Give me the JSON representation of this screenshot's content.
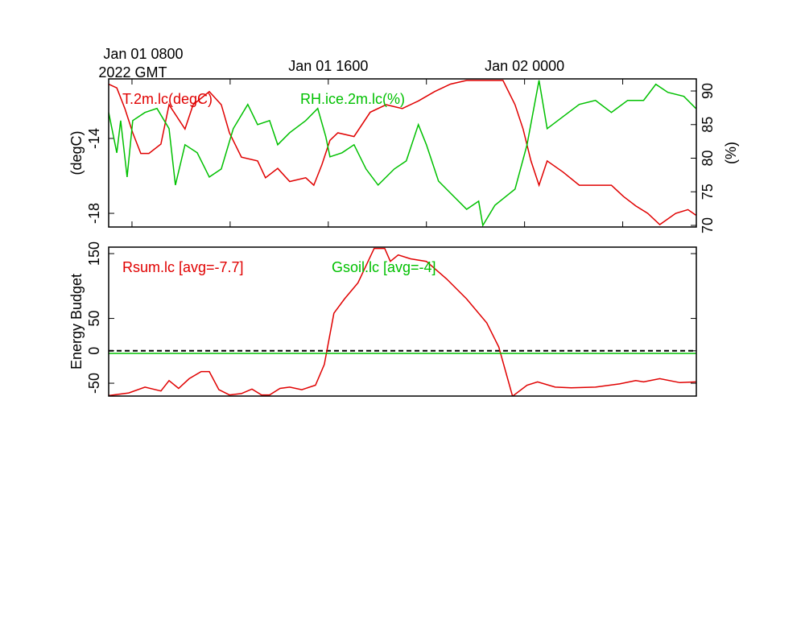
{
  "chart_data": [
    {
      "type": "line",
      "legend": "top-left",
      "xlim": [
        7.05,
        31.0
      ],
      "xticks": [
        {
          "value": 8,
          "label": "Jan 01 0800"
        },
        12,
        {
          "value": 16,
          "label": "Jan 01 1600"
        },
        20,
        {
          "value": 24,
          "label": "Jan 02 0000"
        },
        28
      ],
      "xlabel": "2022 GMT",
      "ylabel": "(degC)",
      "ylim": [
        -18.73,
        -10.82
      ],
      "yticks": [
        -18,
        -14
      ],
      "y2label": "(%)",
      "y2lim": [
        69.76,
        91.8
      ],
      "y2ticks": [
        70,
        75,
        80,
        85,
        90
      ],
      "series": [
        {
          "name": "T.2m.lc(degC)",
          "color": "#e00000",
          "axis": "y",
          "x": [
            7.05,
            7.38,
            7.71,
            8.03,
            8.36,
            8.69,
            9.18,
            9.51,
            10.16,
            10.49,
            11.15,
            11.64,
            11.97,
            12.46,
            13.12,
            13.44,
            13.94,
            14.43,
            15.08,
            15.41,
            15.74,
            16.07,
            16.39,
            17.05,
            17.71,
            18.36,
            19.02,
            19.67,
            20.33,
            20.98,
            21.64,
            22.3,
            23.12,
            23.61,
            23.94,
            24.26,
            24.59,
            24.92,
            25.57,
            26.23,
            26.89,
            27.54,
            28.03,
            28.53,
            29.02,
            29.51,
            30.16,
            30.66,
            30.98
          ],
          "values": [
            -11.1,
            -11.3,
            -12.4,
            -13.7,
            -14.8,
            -14.8,
            -14.3,
            -12.2,
            -13.5,
            -12.2,
            -11.5,
            -12.2,
            -13.7,
            -15.0,
            -15.2,
            -16.1,
            -15.6,
            -16.3,
            -16.1,
            -16.5,
            -15.4,
            -14.1,
            -13.7,
            -13.9,
            -12.6,
            -12.2,
            -12.4,
            -12.0,
            -11.5,
            -11.1,
            -10.9,
            -10.9,
            -10.9,
            -12.2,
            -13.5,
            -15.2,
            -16.5,
            -15.2,
            -15.8,
            -16.5,
            -16.5,
            -16.5,
            -17.1,
            -17.6,
            -18.0,
            -18.6,
            -18.0,
            -17.8,
            -18.1
          ]
        },
        {
          "name": "RH.ice.2m.lc(%)",
          "color": "#00c000",
          "axis": "y2",
          "x": [
            7.05,
            7.38,
            7.54,
            7.8,
            8.03,
            8.53,
            9.02,
            9.51,
            9.77,
            10.16,
            10.66,
            11.15,
            11.64,
            12.13,
            12.72,
            13.12,
            13.61,
            13.94,
            14.43,
            15.08,
            15.57,
            15.9,
            16.07,
            16.56,
            17.05,
            17.54,
            18.03,
            18.69,
            19.18,
            19.67,
            20.0,
            20.49,
            20.98,
            21.64,
            22.13,
            22.3,
            22.79,
            23.61,
            24.1,
            24.59,
            24.92,
            25.57,
            26.23,
            26.89,
            27.54,
            28.2,
            28.85,
            29.35,
            29.84,
            30.49,
            30.98
          ],
          "values": [
            86.8,
            80.8,
            85.6,
            77.2,
            85.6,
            86.8,
            87.4,
            84.4,
            76.0,
            82.0,
            80.8,
            77.2,
            78.4,
            84.4,
            88.0,
            85.0,
            85.6,
            82.0,
            83.8,
            85.6,
            87.4,
            83.2,
            80.2,
            80.8,
            82.0,
            78.4,
            76.0,
            78.4,
            79.6,
            85.0,
            82.0,
            76.6,
            74.8,
            72.4,
            73.6,
            70.0,
            73.0,
            75.4,
            82.0,
            91.6,
            84.4,
            86.2,
            88.0,
            88.6,
            86.8,
            88.6,
            88.6,
            91.0,
            89.8,
            89.2,
            87.4
          ]
        }
      ]
    },
    {
      "type": "line",
      "legend": "top-left",
      "xlim": [
        7.05,
        31.0
      ],
      "ylabel": "Energy Budget",
      "ylim": [
        -69.8,
        160
      ],
      "yticks": [
        -50,
        0,
        50,
        150
      ],
      "reference_line": 0,
      "series": [
        {
          "name": "Rsum.lc [avg=-7.7]",
          "color": "#e00000",
          "x": [
            7.05,
            7.87,
            8.53,
            9.18,
            9.51,
            9.9,
            10.33,
            10.82,
            11.15,
            11.54,
            11.97,
            12.46,
            12.89,
            13.28,
            13.61,
            14.03,
            14.43,
            14.92,
            15.48,
            15.84,
            16.23,
            16.66,
            17.21,
            17.87,
            18.3,
            18.53,
            18.85,
            19.35,
            20.0,
            20.82,
            21.64,
            22.46,
            22.95,
            23.51,
            24.1,
            24.53,
            25.25,
            25.9,
            26.89,
            27.87,
            28.53,
            28.85,
            29.51,
            30.33,
            30.98
          ],
          "values": [
            -69,
            -65,
            -56,
            -62,
            -46,
            -58,
            -43,
            -32,
            -32,
            -60,
            -68,
            -66,
            -59,
            -68,
            -68,
            -58,
            -56,
            -60,
            -53,
            -21,
            58,
            80,
            105,
            158,
            158,
            138,
            148,
            142,
            138,
            111,
            80,
            43,
            6,
            -70,
            -53,
            -48,
            -56,
            -57,
            -56,
            -51,
            -46,
            -48,
            -43,
            -49,
            -48
          ]
        },
        {
          "name": "Gsoil.lc [avg=-4]",
          "color": "#00c000",
          "x": [
            7.05,
            30.98
          ],
          "values": [
            -4,
            -4
          ]
        }
      ]
    }
  ]
}
